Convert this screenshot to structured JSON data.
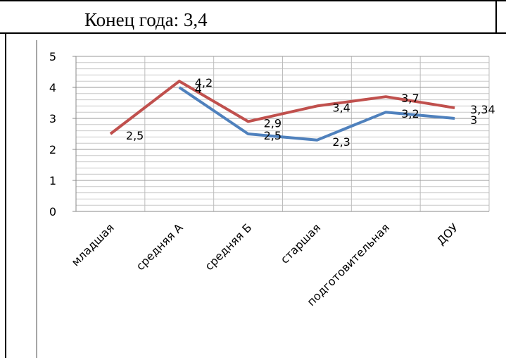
{
  "header": {
    "text": "Конец года: 3,4"
  },
  "chart_data": {
    "type": "line",
    "categories": [
      "младшая",
      "средняя А",
      "средняя Б",
      "старшая",
      "подготовительная",
      "ДОУ"
    ],
    "series": [
      {
        "color": "#c0504d",
        "values": [
          2.5,
          4.2,
          2.9,
          3.4,
          3.7,
          3.34
        ],
        "value_labels": [
          "2,5",
          "4,2",
          "2,9",
          "3,4",
          "3,7",
          "3,34"
        ]
      },
      {
        "color": "#4f81bd",
        "values": [
          null,
          4,
          2.5,
          2.3,
          3.2,
          3
        ],
        "value_labels": [
          null,
          "4",
          "2,5",
          "2,3",
          "3,2",
          "3"
        ]
      }
    ],
    "ylim": [
      0,
      5
    ],
    "yticks": [
      0,
      1,
      2,
      3,
      4,
      5
    ],
    "yminor": [
      0.2,
      0.4,
      0.6,
      0.8,
      1.2,
      1.4,
      1.6,
      1.8,
      2.2,
      2.4,
      2.6,
      2.8,
      3.2,
      3.4,
      3.6,
      3.8,
      4.2,
      4.4,
      4.6,
      4.8
    ],
    "grid": true
  }
}
